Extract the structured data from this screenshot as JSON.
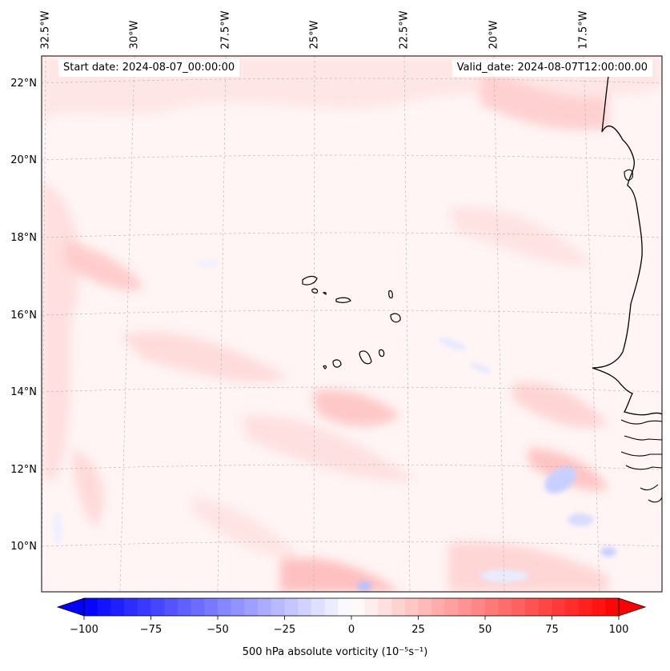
{
  "map": {
    "start_date": "Start date: 2024-08-07_00:00:00",
    "valid_date": "Valid_date: 2024-08-07T12:00:00.00",
    "lon_labels": [
      "32.5°W",
      "30°W",
      "27.5°W",
      "25°W",
      "22.5°W",
      "20°W",
      "17.5°W"
    ],
    "lat_labels": [
      "22°N",
      "20°N",
      "18°N",
      "16°N",
      "14°N",
      "12°N",
      "10°N"
    ],
    "colors": {
      "negative": "#0000ff",
      "zero": "#ffffff",
      "positive": "#ff0000",
      "coastline": "#000000",
      "gridline": "#b0b0b0"
    }
  },
  "colorbar": {
    "label": "500 hPa absolute vorticity (10⁻⁵s⁻¹)",
    "ticks": [
      "−100",
      "−75",
      "−50",
      "−25",
      "0",
      "25",
      "50",
      "75",
      "100"
    ],
    "min": -100,
    "max": 100
  }
}
